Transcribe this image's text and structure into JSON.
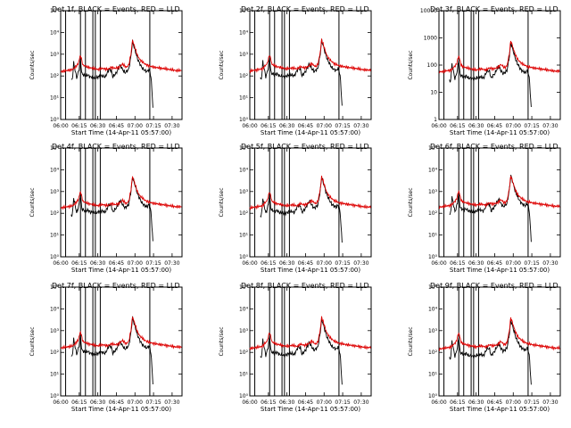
{
  "figure": {
    "panels": [
      {
        "title": "Det 1f, BLACK = Events, RED = LLD",
        "ytick_labels": [
          "10⁰",
          "10¹",
          "10²",
          "10³",
          "10⁴",
          "10⁵"
        ]
      },
      {
        "title": "Det 2f, BLACK = Events, RED = LLD",
        "ytick_labels": [
          "10⁰",
          "10¹",
          "10²",
          "10³",
          "10⁴",
          "10⁵"
        ]
      },
      {
        "title": "Det 3f, BLACK = Events, RED = LLD",
        "ytick_labels": [
          "1",
          "10",
          "100",
          "1000",
          "10000"
        ]
      },
      {
        "title": "Det 4f, BLACK = Events, RED = LLD",
        "ytick_labels": [
          "10⁰",
          "10¹",
          "10²",
          "10³",
          "10⁴",
          "10⁵"
        ]
      },
      {
        "title": "Det 5f, BLACK = Events, RED = LLD",
        "ytick_labels": [
          "10⁰",
          "10¹",
          "10²",
          "10³",
          "10⁴",
          "10⁵"
        ]
      },
      {
        "title": "Det 6f, BLACK = Events, RED = LLD",
        "ytick_labels": [
          "10⁰",
          "10¹",
          "10²",
          "10³",
          "10⁴",
          "10⁵"
        ]
      },
      {
        "title": "Det 7f, BLACK = Events, RED = LLD",
        "ytick_labels": [
          "10⁰",
          "10¹",
          "10²",
          "10³",
          "10⁴",
          "10⁵"
        ]
      },
      {
        "title": "Det 8f, BLACK = Events, RED = LLD",
        "ytick_labels": [
          "10⁰",
          "10¹",
          "10²",
          "10³",
          "10⁴",
          "10⁵"
        ]
      },
      {
        "title": "Det 9f, BLACK = Events, RED = LLD",
        "ytick_labels": [
          "10⁰",
          "10¹",
          "10²",
          "10³",
          "10⁴",
          "10⁵"
        ]
      }
    ]
  },
  "chart_data": {
    "type": "line",
    "layout": "3x3 grid",
    "xlabel": "Start Time (14-Apr-11 05:57:00)",
    "ylabel": "Counts/sec",
    "xtick_labels": [
      "06:00",
      "06:15",
      "06:30",
      "06:45",
      "07:00",
      "07:15",
      "07:30"
    ],
    "xtick_minutes": [
      0,
      15,
      30,
      45,
      60,
      75,
      90
    ],
    "xlim_minutes": [
      0,
      98
    ],
    "ylim_log10": [
      0,
      5
    ],
    "yscale": "log",
    "colors": {
      "events": "#000000",
      "lld": "#dd0000"
    },
    "vertical_markers_minutes": [
      4,
      16,
      20,
      26,
      28,
      32,
      72
    ],
    "events_knots": [
      [
        8.5,
        1.8
      ],
      [
        9.5,
        1.85
      ],
      [
        10.5,
        2.6
      ],
      [
        13,
        1.9
      ],
      [
        15,
        2.35
      ],
      [
        16,
        2.85
      ],
      [
        17,
        2.1
      ],
      [
        20,
        2.0
      ],
      [
        22,
        2.05
      ],
      [
        24,
        1.95
      ],
      [
        26,
        1.95
      ],
      [
        28,
        1.9
      ],
      [
        30,
        1.95
      ],
      [
        32,
        2.0
      ],
      [
        34,
        2.0
      ],
      [
        36,
        1.95
      ],
      [
        39,
        2.3
      ],
      [
        41,
        2.25
      ],
      [
        42,
        1.95
      ],
      [
        45,
        2.15
      ],
      [
        48,
        2.5
      ],
      [
        50,
        2.3
      ],
      [
        52,
        2.15
      ],
      [
        55,
        2.3
      ],
      [
        57,
        3.0
      ],
      [
        58,
        3.6
      ],
      [
        60,
        3.2
      ],
      [
        62,
        2.8
      ],
      [
        64,
        2.55
      ],
      [
        66,
        2.35
      ],
      [
        68,
        2.25
      ],
      [
        70,
        2.2
      ],
      [
        71,
        2.3
      ],
      [
        72,
        2.2
      ],
      [
        73,
        1.95
      ],
      [
        74.5,
        0.6
      ]
    ],
    "lld_knots": [
      [
        0,
        2.2
      ],
      [
        5,
        2.25
      ],
      [
        10,
        2.3
      ],
      [
        14,
        2.55
      ],
      [
        16,
        2.95
      ],
      [
        18,
        2.5
      ],
      [
        22,
        2.4
      ],
      [
        26,
        2.35
      ],
      [
        30,
        2.3
      ],
      [
        34,
        2.35
      ],
      [
        38,
        2.3
      ],
      [
        41,
        2.4
      ],
      [
        44,
        2.35
      ],
      [
        47,
        2.4
      ],
      [
        50,
        2.55
      ],
      [
        53,
        2.4
      ],
      [
        55,
        2.5
      ],
      [
        57,
        3.1
      ],
      [
        58,
        3.65
      ],
      [
        60,
        3.3
      ],
      [
        62,
        2.95
      ],
      [
        64,
        2.75
      ],
      [
        66,
        2.65
      ],
      [
        68,
        2.55
      ],
      [
        72,
        2.45
      ],
      [
        76,
        2.4
      ],
      [
        82,
        2.35
      ],
      [
        88,
        2.3
      ],
      [
        93,
        2.25
      ],
      [
        98,
        2.25
      ]
    ],
    "series": [
      {
        "name": "BLACK = Events"
      },
      {
        "name": "RED = LLD"
      }
    ]
  }
}
